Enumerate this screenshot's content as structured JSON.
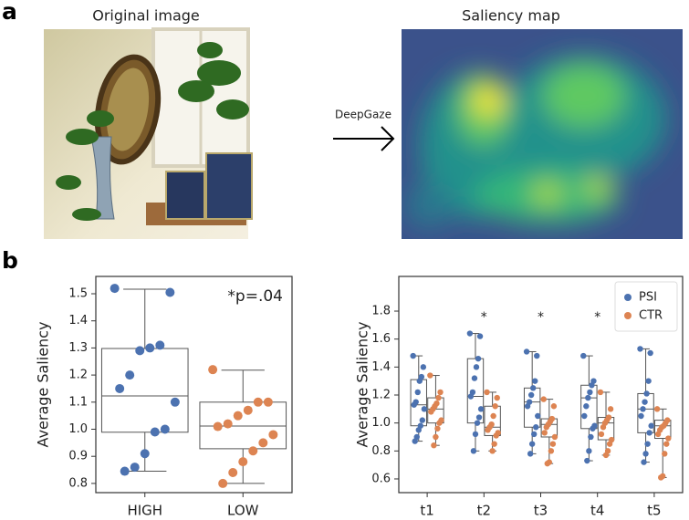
{
  "panel_a": {
    "label": "a",
    "original_title": "Original image",
    "arrow_label": "DeepGaze",
    "saliency_title": "Saliency map"
  },
  "panel_b": {
    "label": "b"
  },
  "chart_data": [
    {
      "type": "box",
      "ylabel": "Average Saliency",
      "categories": [
        "HIGH",
        "LOW"
      ],
      "colors": [
        "#4c72b0",
        "#dd8452"
      ],
      "annotation": "*p=.04",
      "ylim": [
        0.766,
        1.564
      ],
      "yticks": [
        0.8,
        0.9,
        {
          "value": 1,
          "label": "1.0"
        },
        1.1,
        1.2,
        1.3,
        1.4,
        1.5
      ],
      "boxes": [
        {
          "whislo": 0.845,
          "q1": 0.989,
          "med": 1.123,
          "q3": 1.298,
          "whishi": 1.517
        },
        {
          "whislo": 0.8,
          "q1": 0.928,
          "med": 1.012,
          "q3": 1.1,
          "whishi": 1.218
        }
      ],
      "points": [
        [
          1.52,
          1.505,
          1.31,
          1.3,
          1.29,
          1.2,
          1.15,
          1.1,
          1.0,
          0.99,
          0.91,
          0.86,
          0.845
        ],
        [
          1.22,
          1.1,
          1.1,
          1.07,
          1.05,
          1.02,
          1.01,
          0.98,
          0.95,
          0.92,
          0.88,
          0.84,
          0.8
        ]
      ]
    },
    {
      "type": "grouped_box",
      "ylabel": "Average Saliency",
      "categories": [
        "t1",
        "t2",
        "t3",
        "t4",
        "t5"
      ],
      "significance": [
        null,
        "*",
        "*",
        "*",
        null
      ],
      "legend": "upper right",
      "ylim": [
        0.502,
        2.048
      ],
      "yticks": [
        0.6,
        0.8,
        {
          "value": 1,
          "label": "1.0"
        },
        1.2,
        1.4,
        1.6,
        1.8
      ],
      "series": [
        {
          "name": "PSI",
          "color": "#4c72b0",
          "boxes": [
            {
              "whislo": 0.87,
              "q1": 0.98,
              "med": 1.13,
              "q3": 1.31,
              "whishi": 1.48
            },
            {
              "whislo": 0.8,
              "q1": 1.0,
              "med": 1.19,
              "q3": 1.46,
              "whishi": 1.64
            },
            {
              "whislo": 0.78,
              "q1": 0.97,
              "med": 1.15,
              "q3": 1.25,
              "whishi": 1.51
            },
            {
              "whislo": 0.73,
              "q1": 0.96,
              "med": 1.18,
              "q3": 1.27,
              "whishi": 1.48
            },
            {
              "whislo": 0.72,
              "q1": 0.93,
              "med": 1.1,
              "q3": 1.21,
              "whishi": 1.53
            }
          ],
          "points": [
            [
              1.48,
              1.4,
              1.33,
              1.3,
              1.22,
              1.15,
              1.13,
              1.1,
              1.02,
              0.98,
              0.95,
              0.9,
              0.87
            ],
            [
              1.64,
              1.62,
              1.46,
              1.4,
              1.32,
              1.22,
              1.19,
              1.1,
              1.04,
              1.0,
              0.92,
              0.8
            ],
            [
              1.51,
              1.48,
              1.3,
              1.25,
              1.2,
              1.15,
              1.12,
              1.05,
              0.97,
              0.92,
              0.85,
              0.78
            ],
            [
              1.48,
              1.3,
              1.27,
              1.22,
              1.18,
              1.12,
              1.05,
              0.98,
              0.96,
              0.9,
              0.8,
              0.73
            ],
            [
              1.53,
              1.5,
              1.3,
              1.21,
              1.15,
              1.1,
              1.05,
              0.98,
              0.93,
              0.85,
              0.78,
              0.72
            ]
          ]
        },
        {
          "name": "CTR",
          "color": "#dd8452",
          "boxes": [
            {
              "whislo": 0.84,
              "q1": 1.0,
              "med": 1.1,
              "q3": 1.18,
              "whishi": 1.34
            },
            {
              "whislo": 0.8,
              "q1": 0.91,
              "med": 0.97,
              "q3": 1.12,
              "whishi": 1.22
            },
            {
              "whislo": 0.71,
              "q1": 0.9,
              "med": 0.99,
              "q3": 1.03,
              "whishi": 1.17
            },
            {
              "whislo": 0.77,
              "q1": 0.88,
              "med": 1.0,
              "q3": 1.04,
              "whishi": 1.22
            },
            {
              "whislo": 0.61,
              "q1": 0.89,
              "med": 0.98,
              "q3": 1.02,
              "whishi": 1.1
            }
          ],
          "points": [
            [
              1.34,
              1.22,
              1.18,
              1.14,
              1.12,
              1.1,
              1.08,
              1.02,
              1.0,
              0.96,
              0.9,
              0.84
            ],
            [
              1.22,
              1.18,
              1.12,
              1.05,
              0.99,
              0.97,
              0.95,
              0.93,
              0.91,
              0.85,
              0.8
            ],
            [
              1.17,
              1.12,
              1.03,
              1.01,
              0.99,
              0.97,
              0.93,
              0.9,
              0.85,
              0.8,
              0.72,
              0.71
            ],
            [
              1.22,
              1.1,
              1.04,
              1.02,
              1.0,
              0.97,
              0.92,
              0.88,
              0.85,
              0.8,
              0.77
            ],
            [
              1.1,
              1.02,
              1.0,
              0.98,
              0.97,
              0.95,
              0.92,
              0.89,
              0.85,
              0.78,
              0.62,
              0.61
            ]
          ]
        }
      ]
    }
  ]
}
